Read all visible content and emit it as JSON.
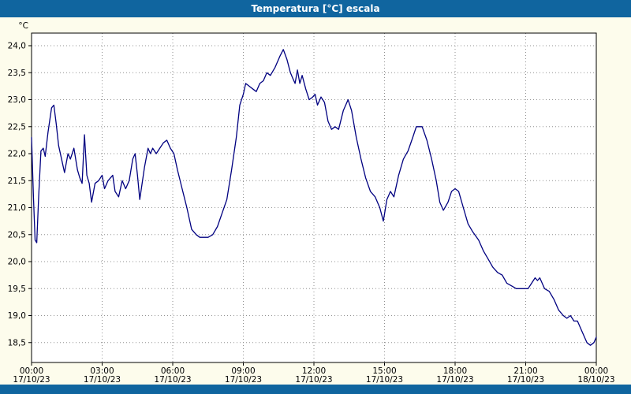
{
  "header": {
    "title": "Temperatura [°C] escala"
  },
  "colors": {
    "titlebar": "#10659f",
    "background": "#fdfcec",
    "plot_background": "#ffffff",
    "line": "#000080",
    "grid": "#909090",
    "axis": "#000000"
  },
  "chart_data": {
    "type": "line",
    "title": "Temperatura [°C] escala",
    "xlabel": "",
    "ylabel": "°C",
    "xlim_hours": [
      0,
      24
    ],
    "ylim": [
      18.15,
      24.25
    ],
    "grid": true,
    "legend": "none",
    "y_ticks": [
      {
        "value": 24.0,
        "label": "24,0"
      },
      {
        "value": 23.5,
        "label": "23,5"
      },
      {
        "value": 23.0,
        "label": "23,0"
      },
      {
        "value": 22.5,
        "label": "22,5"
      },
      {
        "value": 22.0,
        "label": "22,0"
      },
      {
        "value": 21.5,
        "label": "21,5"
      },
      {
        "value": 21.0,
        "label": "21,0"
      },
      {
        "value": 20.5,
        "label": "20,5"
      },
      {
        "value": 20.0,
        "label": "20,0"
      },
      {
        "value": 19.5,
        "label": "19,5"
      },
      {
        "value": 19.0,
        "label": "19,0"
      },
      {
        "value": 18.5,
        "label": "18,5"
      }
    ],
    "x_ticks": [
      {
        "hour": 0,
        "time": "00:00",
        "date": "17/10/23"
      },
      {
        "hour": 3,
        "time": "03:00",
        "date": "17/10/23"
      },
      {
        "hour": 6,
        "time": "06:00",
        "date": "17/10/23"
      },
      {
        "hour": 9,
        "time": "09:00",
        "date": "17/10/23"
      },
      {
        "hour": 12,
        "time": "12:00",
        "date": "17/10/23"
      },
      {
        "hour": 15,
        "time": "15:00",
        "date": "17/10/23"
      },
      {
        "hour": 18,
        "time": "18:00",
        "date": "17/10/23"
      },
      {
        "hour": 21,
        "time": "21:00",
        "date": "17/10/23"
      },
      {
        "hour": 24,
        "time": "00:00",
        "date": "18/10/23"
      }
    ],
    "series": [
      {
        "name": "Temperatura",
        "points": [
          [
            0.0,
            22.3
          ],
          [
            0.08,
            21.2
          ],
          [
            0.15,
            20.4
          ],
          [
            0.22,
            20.35
          ],
          [
            0.3,
            21.2
          ],
          [
            0.4,
            22.05
          ],
          [
            0.5,
            22.1
          ],
          [
            0.58,
            21.95
          ],
          [
            0.7,
            22.4
          ],
          [
            0.85,
            22.85
          ],
          [
            0.95,
            22.9
          ],
          [
            1.05,
            22.55
          ],
          [
            1.15,
            22.15
          ],
          [
            1.3,
            21.85
          ],
          [
            1.4,
            21.65
          ],
          [
            1.55,
            22.0
          ],
          [
            1.65,
            21.9
          ],
          [
            1.8,
            22.1
          ],
          [
            1.95,
            21.7
          ],
          [
            2.05,
            21.55
          ],
          [
            2.15,
            21.45
          ],
          [
            2.25,
            22.35
          ],
          [
            2.35,
            21.6
          ],
          [
            2.45,
            21.45
          ],
          [
            2.55,
            21.1
          ],
          [
            2.7,
            21.45
          ],
          [
            2.85,
            21.5
          ],
          [
            3.0,
            21.6
          ],
          [
            3.1,
            21.35
          ],
          [
            3.25,
            21.5
          ],
          [
            3.45,
            21.6
          ],
          [
            3.55,
            21.3
          ],
          [
            3.7,
            21.2
          ],
          [
            3.85,
            21.5
          ],
          [
            4.0,
            21.35
          ],
          [
            4.15,
            21.5
          ],
          [
            4.3,
            21.9
          ],
          [
            4.4,
            22.0
          ],
          [
            4.5,
            21.6
          ],
          [
            4.6,
            21.15
          ],
          [
            4.8,
            21.75
          ],
          [
            4.95,
            22.1
          ],
          [
            5.05,
            22.0
          ],
          [
            5.15,
            22.1
          ],
          [
            5.3,
            22.0
          ],
          [
            5.45,
            22.1
          ],
          [
            5.6,
            22.2
          ],
          [
            5.75,
            22.25
          ],
          [
            5.9,
            22.1
          ],
          [
            6.05,
            22.0
          ],
          [
            6.2,
            21.7
          ],
          [
            6.4,
            21.35
          ],
          [
            6.6,
            21.0
          ],
          [
            6.8,
            20.6
          ],
          [
            7.0,
            20.5
          ],
          [
            7.15,
            20.45
          ],
          [
            7.5,
            20.45
          ],
          [
            7.7,
            20.5
          ],
          [
            7.9,
            20.65
          ],
          [
            8.1,
            20.9
          ],
          [
            8.3,
            21.15
          ],
          [
            8.5,
            21.7
          ],
          [
            8.7,
            22.3
          ],
          [
            8.85,
            22.9
          ],
          [
            9.0,
            23.1
          ],
          [
            9.1,
            23.3
          ],
          [
            9.25,
            23.25
          ],
          [
            9.4,
            23.2
          ],
          [
            9.55,
            23.15
          ],
          [
            9.7,
            23.3
          ],
          [
            9.85,
            23.35
          ],
          [
            10.0,
            23.5
          ],
          [
            10.15,
            23.45
          ],
          [
            10.35,
            23.6
          ],
          [
            10.55,
            23.8
          ],
          [
            10.7,
            23.93
          ],
          [
            10.85,
            23.75
          ],
          [
            11.0,
            23.5
          ],
          [
            11.1,
            23.4
          ],
          [
            11.2,
            23.3
          ],
          [
            11.3,
            23.55
          ],
          [
            11.4,
            23.3
          ],
          [
            11.5,
            23.45
          ],
          [
            11.65,
            23.2
          ],
          [
            11.8,
            23.0
          ],
          [
            11.95,
            23.05
          ],
          [
            12.05,
            23.1
          ],
          [
            12.15,
            22.9
          ],
          [
            12.3,
            23.05
          ],
          [
            12.45,
            22.95
          ],
          [
            12.6,
            22.6
          ],
          [
            12.75,
            22.45
          ],
          [
            12.9,
            22.5
          ],
          [
            13.05,
            22.45
          ],
          [
            13.25,
            22.8
          ],
          [
            13.45,
            23.0
          ],
          [
            13.6,
            22.8
          ],
          [
            13.8,
            22.3
          ],
          [
            14.0,
            21.9
          ],
          [
            14.2,
            21.55
          ],
          [
            14.4,
            21.3
          ],
          [
            14.6,
            21.2
          ],
          [
            14.8,
            21.0
          ],
          [
            14.95,
            20.75
          ],
          [
            15.1,
            21.15
          ],
          [
            15.25,
            21.3
          ],
          [
            15.4,
            21.2
          ],
          [
            15.6,
            21.6
          ],
          [
            15.8,
            21.9
          ],
          [
            16.0,
            22.05
          ],
          [
            16.2,
            22.3
          ],
          [
            16.35,
            22.5
          ],
          [
            16.6,
            22.5
          ],
          [
            16.8,
            22.25
          ],
          [
            17.0,
            21.9
          ],
          [
            17.2,
            21.5
          ],
          [
            17.35,
            21.1
          ],
          [
            17.5,
            20.95
          ],
          [
            17.7,
            21.1
          ],
          [
            17.85,
            21.3
          ],
          [
            18.0,
            21.35
          ],
          [
            18.15,
            21.3
          ],
          [
            18.35,
            21.0
          ],
          [
            18.55,
            20.7
          ],
          [
            18.75,
            20.55
          ],
          [
            19.0,
            20.4
          ],
          [
            19.2,
            20.2
          ],
          [
            19.4,
            20.05
          ],
          [
            19.6,
            19.9
          ],
          [
            19.8,
            19.8
          ],
          [
            20.0,
            19.75
          ],
          [
            20.2,
            19.6
          ],
          [
            20.4,
            19.55
          ],
          [
            20.6,
            19.5
          ],
          [
            20.9,
            19.5
          ],
          [
            21.1,
            19.5
          ],
          [
            21.25,
            19.6
          ],
          [
            21.4,
            19.7
          ],
          [
            21.5,
            19.65
          ],
          [
            21.6,
            19.7
          ],
          [
            21.8,
            19.5
          ],
          [
            22.0,
            19.45
          ],
          [
            22.2,
            19.3
          ],
          [
            22.4,
            19.1
          ],
          [
            22.6,
            19.0
          ],
          [
            22.75,
            18.95
          ],
          [
            22.9,
            19.0
          ],
          [
            23.05,
            18.9
          ],
          [
            23.2,
            18.9
          ],
          [
            23.4,
            18.7
          ],
          [
            23.6,
            18.5
          ],
          [
            23.75,
            18.45
          ],
          [
            23.9,
            18.5
          ],
          [
            24.0,
            18.6
          ]
        ]
      }
    ]
  }
}
